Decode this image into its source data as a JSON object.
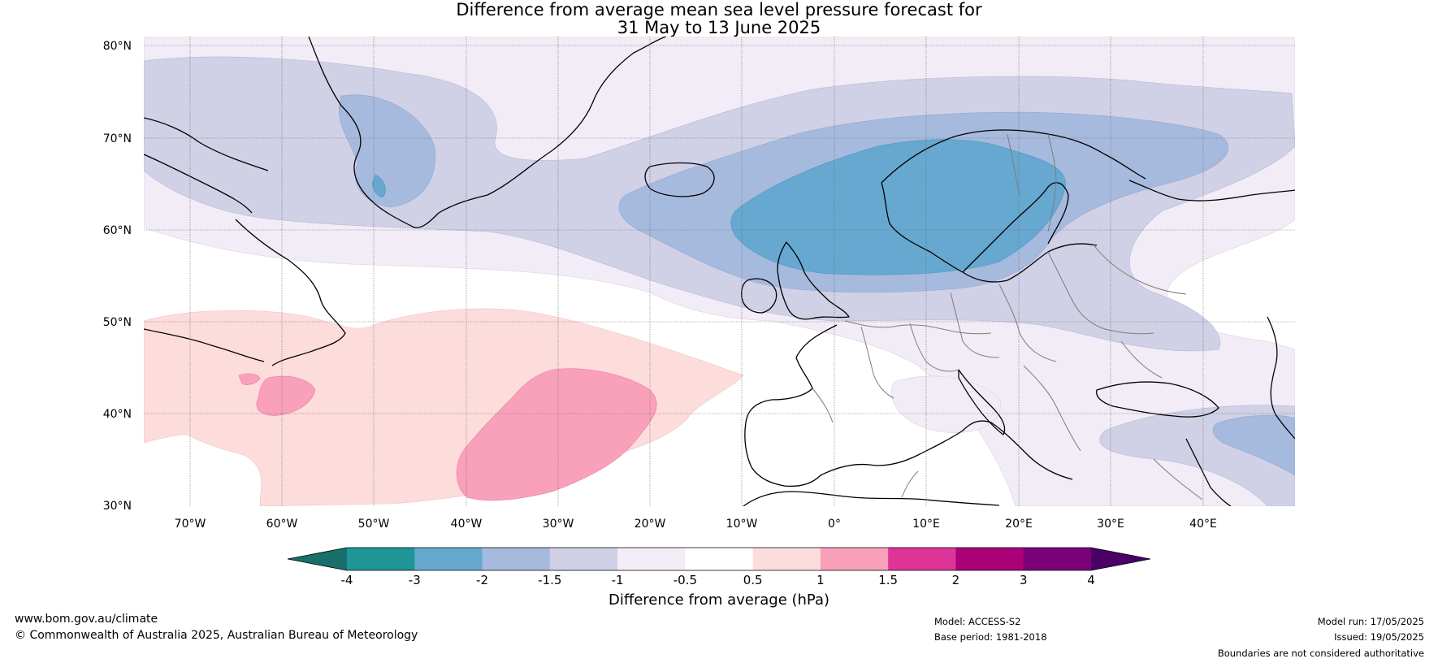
{
  "title": {
    "line1": "Difference from average mean sea level pressure forecast for",
    "line2": "31 May to 13 June 2025"
  },
  "map": {
    "region": "North Atlantic and Europe",
    "lat_labels": [
      "80°N",
      "70°N",
      "60°N",
      "50°N",
      "40°N",
      "30°N"
    ],
    "lon_labels": [
      "70°W",
      "60°W",
      "50°W",
      "40°W",
      "30°W",
      "20°W",
      "10°W",
      "0°",
      "10°E",
      "20°E",
      "30°E",
      "40°E"
    ],
    "extent": {
      "lon": [
        -75,
        50
      ],
      "lat": [
        30,
        81
      ]
    },
    "gridlines": true
  },
  "colorbar": {
    "label": "Difference from average (hPa)",
    "ticks": [
      "-4",
      "-3",
      "-2",
      "-1.5",
      "-1",
      "-0.5",
      "0.5",
      "1",
      "1.5",
      "2",
      "3",
      "4"
    ],
    "colors": [
      "#18706a",
      "#1f9597",
      "#66a8d0",
      "#a6bade",
      "#d0d0e6",
      "#f2ecf6",
      "#ffffff",
      "#fddcdc",
      "#f9a1bb",
      "#dd3597",
      "#aa0179",
      "#7a0177",
      "#4b0066"
    ]
  },
  "footer": {
    "website": "www.bom.gov.au/climate",
    "copyright": "© Commonwealth of Australia 2025, Australian Bureau of Meteorology",
    "model": "Model: ACCESS-S2",
    "base_period": "Base period: 1981-2018",
    "model_run": "Model run: 17/05/2025",
    "issued": "Issued: 19/05/2025",
    "disclaimer": "Boundaries are not considered authoritative"
  }
}
